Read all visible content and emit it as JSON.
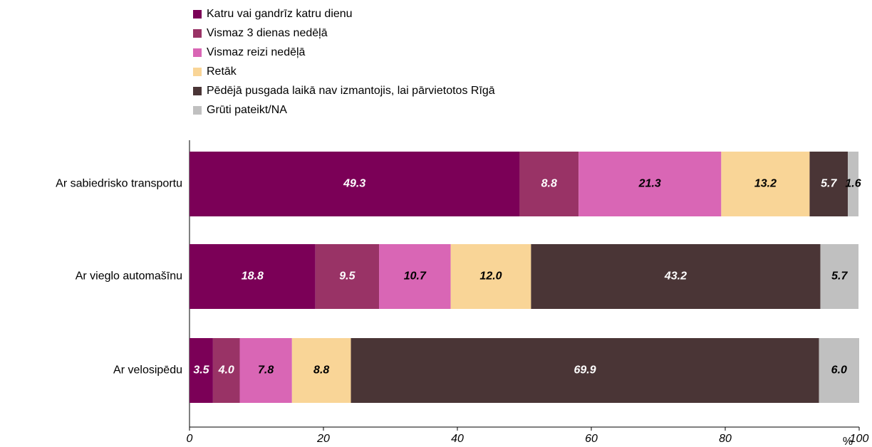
{
  "chart_data": {
    "type": "stacked_barh",
    "categories": [
      "Ar sabiedrisko transportu",
      "Ar vieglo automašīnu",
      "Ar velosipēdu"
    ],
    "series": [
      {
        "name": "Katru vai gandrīz katru dienu",
        "color": "#7b0057",
        "values": [
          49.3,
          18.8,
          3.5
        ],
        "value_labels": [
          "49.3",
          "18.8",
          "3.5"
        ]
      },
      {
        "name": "Vismaz 3 dienas nedēļā",
        "color": "#993366",
        "values": [
          8.8,
          9.5,
          4.0
        ],
        "value_labels": [
          "8.8",
          "9.5",
          "4.0"
        ]
      },
      {
        "name": "Vismaz reizi nedēļā",
        "color": "#d966b5",
        "values": [
          21.3,
          10.7,
          7.8
        ],
        "value_labels": [
          "21.3",
          "10.7",
          "7.8"
        ]
      },
      {
        "name": "Retāk",
        "color": "#f9d597",
        "values": [
          13.2,
          12.0,
          8.8
        ],
        "value_labels": [
          "13.2",
          "12.0",
          "8.8"
        ]
      },
      {
        "name": "Pēdējā pusgada laikā nav izmantojis, lai pārvietotos Rīgā",
        "color": "#4a3536",
        "values": [
          5.7,
          43.2,
          69.9
        ],
        "value_labels": [
          "5.7",
          "43.2",
          "69.9"
        ]
      },
      {
        "name": "Grūti pateikt/NA",
        "color": "#c0c0c0",
        "values": [
          1.6,
          5.7,
          6.0
        ],
        "value_labels": [
          "1.6",
          "5.7",
          "6.0"
        ]
      }
    ],
    "x_label": "%",
    "xlim": [
      0,
      100
    ],
    "xticks": [
      0,
      20,
      40,
      60,
      80,
      100
    ],
    "legend": "top"
  }
}
